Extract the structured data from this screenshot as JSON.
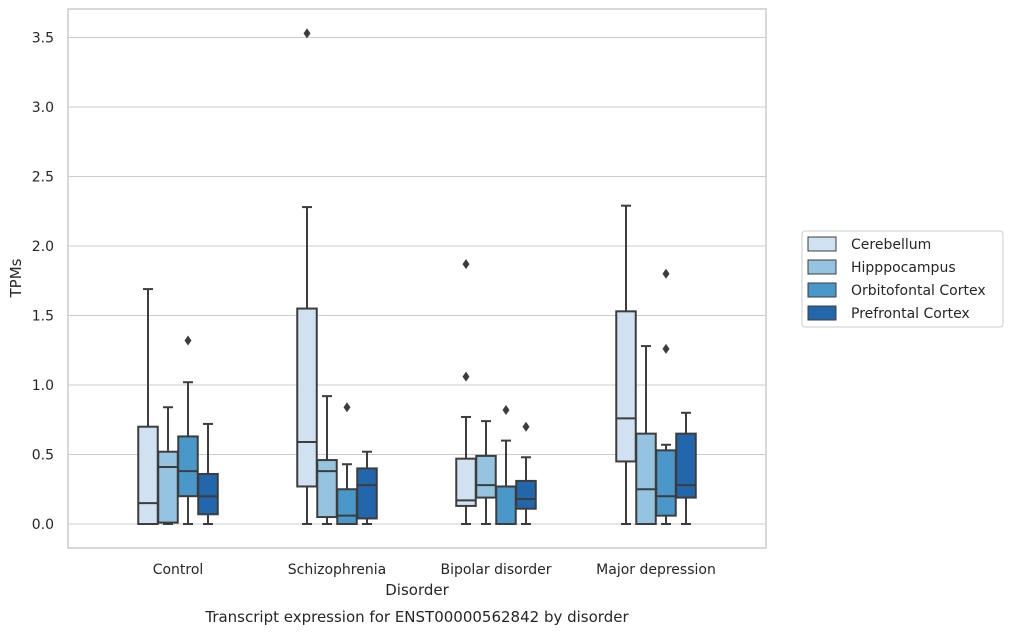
{
  "chart_data": {
    "type": "box",
    "title": "",
    "caption": "Transcript expression for ENST00000562842 by disorder",
    "xlabel": "Disorder",
    "ylabel": "TPMs",
    "ylim": [
      -0.17,
      3.71
    ],
    "yticks": [
      "0.0",
      "0.5",
      "1.0",
      "1.5",
      "2.0",
      "2.5",
      "3.0",
      "3.5"
    ],
    "categories": [
      "Control",
      "Schizophrenia",
      "Bipolar disorder",
      "Major depression"
    ],
    "grid": "horizontal",
    "legend": {
      "placement": "right"
    },
    "series": [
      {
        "name": "Cerebellum",
        "color": "#d0e1f2",
        "boxes": [
          {
            "whislo": 0.0,
            "q1": 0.0,
            "med": 0.15,
            "q3": 0.7,
            "whishi": 1.69,
            "fliers": []
          },
          {
            "whislo": 0.0,
            "q1": 0.27,
            "med": 0.59,
            "q3": 1.55,
            "whishi": 2.28,
            "fliers": [
              3.53
            ]
          },
          {
            "whislo": 0.0,
            "q1": 0.13,
            "med": 0.17,
            "q3": 0.47,
            "whishi": 0.77,
            "fliers": [
              1.06,
              1.87
            ]
          },
          {
            "whislo": 0.0,
            "q1": 0.45,
            "med": 0.76,
            "q3": 1.53,
            "whishi": 2.29,
            "fliers": []
          }
        ]
      },
      {
        "name": "Hipppocampus",
        "color": "#94c4df",
        "boxes": [
          {
            "whislo": 0.0,
            "q1": 0.01,
            "med": 0.41,
            "q3": 0.52,
            "whishi": 0.84,
            "fliers": []
          },
          {
            "whislo": 0.0,
            "q1": 0.05,
            "med": 0.38,
            "q3": 0.46,
            "whishi": 0.92,
            "fliers": []
          },
          {
            "whislo": 0.0,
            "q1": 0.19,
            "med": 0.28,
            "q3": 0.49,
            "whishi": 0.74,
            "fliers": []
          },
          {
            "whislo": 0.0,
            "q1": 0.0,
            "med": 0.25,
            "q3": 0.65,
            "whishi": 1.28,
            "fliers": []
          }
        ]
      },
      {
        "name": "Orbitofontal Cortex",
        "color": "#4a98c9",
        "boxes": [
          {
            "whislo": 0.0,
            "q1": 0.2,
            "med": 0.38,
            "q3": 0.63,
            "whishi": 1.02,
            "fliers": [
              1.32
            ]
          },
          {
            "whislo": 0.0,
            "q1": 0.0,
            "med": 0.06,
            "q3": 0.25,
            "whishi": 0.43,
            "fliers": [
              0.84
            ]
          },
          {
            "whislo": 0.0,
            "q1": 0.0,
            "med": 0.27,
            "q3": 0.27,
            "whishi": 0.6,
            "fliers": [
              0.82
            ]
          },
          {
            "whislo": 0.0,
            "q1": 0.06,
            "med": 0.2,
            "q3": 0.53,
            "whishi": 0.57,
            "fliers": [
              1.26,
              1.8
            ]
          }
        ]
      },
      {
        "name": "Prefrontal Cortex",
        "color": "#2266ac",
        "boxes": [
          {
            "whislo": 0.0,
            "q1": 0.07,
            "med": 0.2,
            "q3": 0.36,
            "whishi": 0.72,
            "fliers": []
          },
          {
            "whislo": 0.0,
            "q1": 0.04,
            "med": 0.28,
            "q3": 0.4,
            "whishi": 0.52,
            "fliers": []
          },
          {
            "whislo": 0.0,
            "q1": 0.11,
            "med": 0.18,
            "q3": 0.31,
            "whishi": 0.48,
            "fliers": [
              0.7
            ]
          },
          {
            "whislo": 0.0,
            "q1": 0.19,
            "med": 0.28,
            "q3": 0.65,
            "whishi": 0.8,
            "fliers": []
          }
        ]
      }
    ]
  }
}
